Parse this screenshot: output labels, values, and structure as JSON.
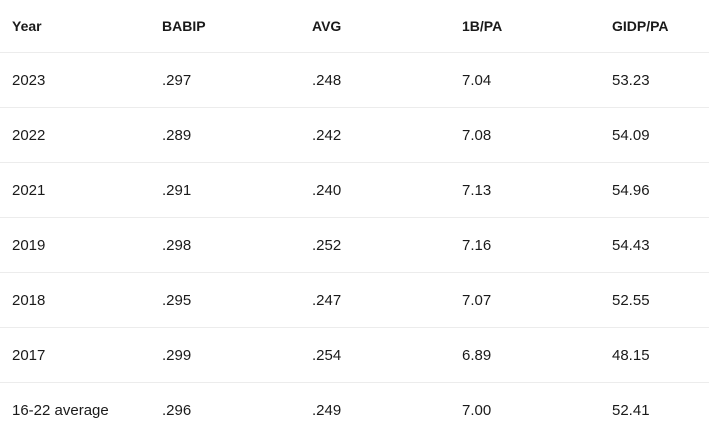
{
  "table": {
    "header": [
      "Year",
      "BABIP",
      "AVG",
      "1B/PA",
      "GIDP/PA"
    ],
    "rows": [
      [
        "2023",
        ".297",
        ".248",
        "7.04",
        "53.23"
      ],
      [
        "2022",
        ".289",
        ".242",
        "7.08",
        "54.09"
      ],
      [
        "2021",
        ".291",
        ".240",
        "7.13",
        "54.96"
      ],
      [
        "2019",
        ".298",
        ".252",
        "7.16",
        "54.43"
      ],
      [
        "2018",
        ".295",
        ".247",
        "7.07",
        "52.55"
      ],
      [
        "2017",
        ".299",
        ".254",
        "6.89",
        "48.15"
      ],
      [
        "16-22 average",
        ".296",
        ".249",
        "7.00",
        "52.41"
      ]
    ]
  }
}
